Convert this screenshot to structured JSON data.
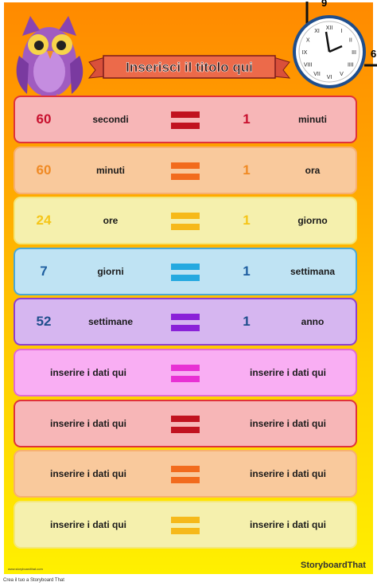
{
  "header": {
    "title": "Inserisci il titolo qui"
  },
  "clock": {
    "numerals": [
      "XII",
      "I",
      "II",
      "III",
      "IIII",
      "V",
      "VI",
      "VII",
      "VIII",
      "IX",
      "X",
      "XI"
    ],
    "edge_labels": [
      "9",
      "6"
    ]
  },
  "rows": [
    {
      "left_value": "60",
      "left_unit": "secondi",
      "right_value": "1",
      "right_unit": "minuti"
    },
    {
      "left_value": "60",
      "left_unit": "minuti",
      "right_value": "1",
      "right_unit": "ora"
    },
    {
      "left_value": "24",
      "left_unit": "ore",
      "right_value": "1",
      "right_unit": "giorno"
    },
    {
      "left_value": "7",
      "left_unit": "giorni",
      "right_value": "1",
      "right_unit": "settimana"
    },
    {
      "left_value": "52",
      "left_unit": "settimane",
      "right_value": "1",
      "right_unit": "anno"
    },
    {
      "left_text": "inserire i dati qui",
      "right_text": "inserire i dati qui"
    },
    {
      "left_text": "inserire i dati qui",
      "right_text": "inserire i dati qui"
    },
    {
      "left_text": "inserire i dati qui",
      "right_text": "inserire i dati qui"
    },
    {
      "left_text": "inserire i dati qui",
      "right_text": "inserire i dati qui"
    }
  ],
  "footer": {
    "url": "www.storyboardthat.com",
    "logo": "StoryboardThat",
    "credit": "Crea il tuo a Storyboard That"
  }
}
